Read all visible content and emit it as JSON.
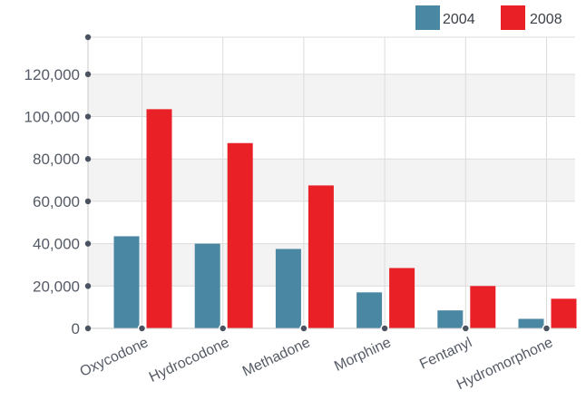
{
  "chart_data": {
    "type": "bar",
    "categories": [
      "Oxycodone",
      "Hydrocodone",
      "Methadone",
      "Morphine",
      "Fentanyl",
      "Hydromorphone"
    ],
    "series": [
      {
        "name": "2004",
        "color": "#4a87a2",
        "values": [
          43500,
          40000,
          37500,
          17000,
          8500,
          4500
        ]
      },
      {
        "name": "2008",
        "color": "#e92026",
        "values": [
          103500,
          87500,
          67500,
          28500,
          20000,
          14000
        ]
      }
    ],
    "ylim": [
      0,
      137500
    ],
    "yticks": [
      0,
      20000,
      40000,
      60000,
      80000,
      100000,
      120000
    ],
    "ytick_labels": [
      "0",
      "20,000",
      "40,000",
      "60,000",
      "80,000",
      "100,000",
      "120,000"
    ],
    "grid": true,
    "legend_position": "top-right",
    "title": "",
    "xlabel": "",
    "ylabel": ""
  }
}
